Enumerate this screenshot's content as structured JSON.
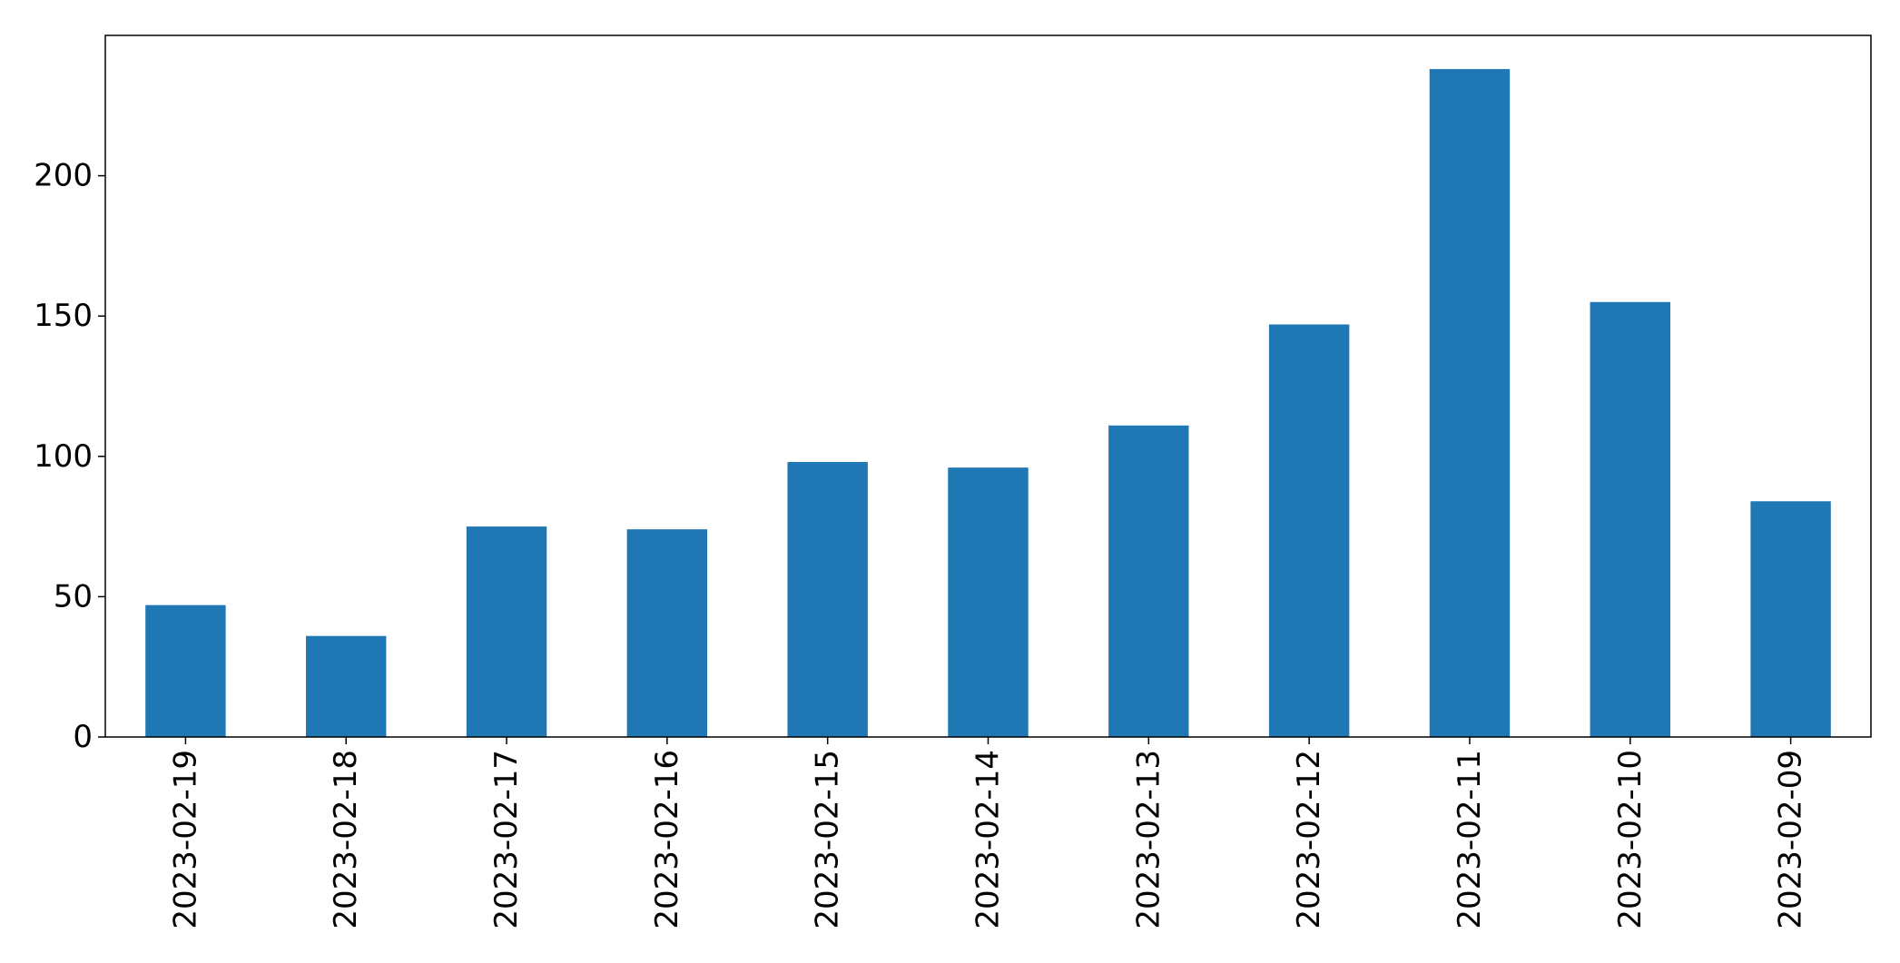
{
  "chart_data": {
    "type": "bar",
    "title": "",
    "xlabel": "",
    "ylabel": "",
    "categories": [
      "2023-02-19",
      "2023-02-18",
      "2023-02-17",
      "2023-02-16",
      "2023-02-15",
      "2023-02-14",
      "2023-02-13",
      "2023-02-12",
      "2023-02-11",
      "2023-02-10",
      "2023-02-09"
    ],
    "values": [
      47,
      36,
      75,
      74,
      98,
      96,
      111,
      147,
      238,
      155,
      84
    ],
    "ylim": [
      0,
      250
    ],
    "yticks": [
      0,
      50,
      100,
      150,
      200
    ],
    "ytick_labels": [
      "0",
      "50",
      "100",
      "150",
      "200"
    ],
    "grid": false,
    "legend": "none",
    "bar_color": "#1f77b4"
  }
}
